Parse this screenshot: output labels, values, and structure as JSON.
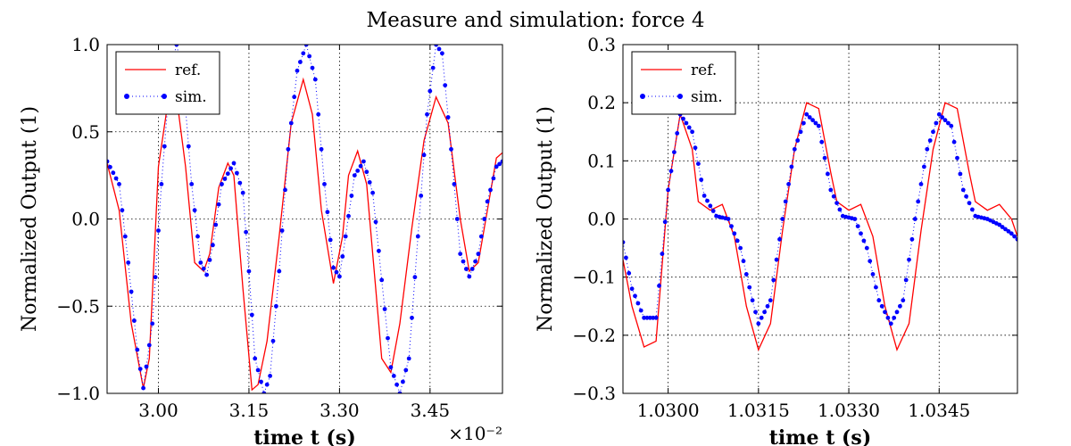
{
  "figure": {
    "title": "Measure and simulation: force 4"
  },
  "chart_data": [
    {
      "type": "line",
      "title": "",
      "xlabel": "time t (s)",
      "ylabel": "Normalized Output (1)",
      "x_offset_text": "×10⁻²",
      "xlim": [
        2.915,
        3.57
      ],
      "ylim": [
        -1.0,
        1.0
      ],
      "xticks": [
        3.0,
        3.15,
        3.3,
        3.45
      ],
      "xtick_labels": [
        "3.00",
        "3.15",
        "3.30",
        "3.45"
      ],
      "yticks": [
        -1.0,
        -0.5,
        0.0,
        0.5,
        1.0
      ],
      "ytick_labels": [
        "−1.0",
        "−0.5",
        "0.0",
        "0.5",
        "1.0"
      ],
      "grid": true,
      "legend": "top-left",
      "series": [
        {
          "name": "ref.",
          "style": "line",
          "color": "#ff0000",
          "x": [
            2.915,
            2.935,
            2.955,
            2.975,
            2.985,
            3.0,
            3.015,
            3.03,
            3.045,
            3.06,
            3.075,
            3.085,
            3.1,
            3.115,
            3.125,
            3.14,
            3.155,
            3.165,
            3.18,
            3.2,
            3.22,
            3.24,
            3.255,
            3.27,
            3.29,
            3.305,
            3.315,
            3.33,
            3.345,
            3.36,
            3.37,
            3.385,
            3.4,
            3.42,
            3.44,
            3.46,
            3.48,
            3.5,
            3.515,
            3.53,
            3.545,
            3.56,
            3.57
          ],
          "y": [
            0.32,
            0.05,
            -0.6,
            -0.97,
            -0.8,
            0.3,
            0.65,
            0.7,
            0.3,
            -0.25,
            -0.3,
            -0.2,
            0.18,
            0.32,
            0.25,
            -0.4,
            -0.98,
            -0.95,
            -0.7,
            -0.1,
            0.55,
            0.8,
            0.6,
            0.05,
            -0.37,
            -0.1,
            0.25,
            0.39,
            0.2,
            -0.4,
            -0.8,
            -0.88,
            -0.6,
            -0.05,
            0.45,
            0.7,
            0.55,
            0.0,
            -0.3,
            -0.25,
            0.05,
            0.35,
            0.38
          ]
        },
        {
          "name": "sim.",
          "style": "dotted-markers",
          "color": "#0000ff",
          "x": [
            2.915,
            2.935,
            2.95,
            2.965,
            2.975,
            2.99,
            3.005,
            3.02,
            3.03,
            3.04,
            3.055,
            3.07,
            3.08,
            3.09,
            3.105,
            3.125,
            3.14,
            3.15,
            3.16,
            3.175,
            3.185,
            3.2,
            3.215,
            3.23,
            3.245,
            3.26,
            3.275,
            3.29,
            3.3,
            3.31,
            3.325,
            3.34,
            3.355,
            3.37,
            3.385,
            3.4,
            3.415,
            3.43,
            3.445,
            3.46,
            3.47,
            3.485,
            3.5,
            3.515,
            3.53,
            3.545,
            3.56,
            3.57
          ],
          "y": [
            0.33,
            0.2,
            -0.25,
            -0.75,
            -0.97,
            -0.6,
            0.2,
            0.85,
            1.0,
            0.85,
            0.2,
            -0.25,
            -0.32,
            -0.15,
            0.2,
            0.32,
            0.15,
            -0.3,
            -0.8,
            -1.0,
            -0.9,
            -0.3,
            0.4,
            0.85,
            1.0,
            0.8,
            0.2,
            -0.28,
            -0.33,
            -0.1,
            0.25,
            0.33,
            0.15,
            -0.35,
            -0.85,
            -1.0,
            -0.8,
            -0.1,
            0.6,
            1.0,
            0.95,
            0.4,
            -0.2,
            -0.33,
            -0.2,
            0.1,
            0.3,
            0.33
          ]
        }
      ]
    },
    {
      "type": "line",
      "title": "",
      "xlabel": "time t (s)",
      "ylabel": "Normalized Output (1)",
      "xlim": [
        1.02925,
        1.0358
      ],
      "ylim": [
        -0.3,
        0.3
      ],
      "xticks": [
        1.03,
        1.0315,
        1.033,
        1.0345
      ],
      "xtick_labels": [
        "1.0300",
        "1.0315",
        "1.0330",
        "1.0345"
      ],
      "yticks": [
        -0.3,
        -0.2,
        -0.1,
        0.0,
        0.1,
        0.2,
        0.3
      ],
      "ytick_labels": [
        "−0.3",
        "−0.2",
        "−0.1",
        "0.0",
        "0.1",
        "0.2",
        "0.3"
      ],
      "grid": true,
      "legend": "top-left",
      "series": [
        {
          "name": "ref.",
          "style": "line",
          "color": "#ff0000",
          "x": [
            1.02925,
            1.0294,
            1.0296,
            1.0298,
            1.03,
            1.0302,
            1.0304,
            1.0305,
            1.0307,
            1.0309,
            1.0311,
            1.0313,
            1.0315,
            1.0317,
            1.0319,
            1.0321,
            1.0323,
            1.0325,
            1.0327,
            1.0328,
            1.033,
            1.0332,
            1.0334,
            1.0336,
            1.0338,
            1.034,
            1.0342,
            1.0344,
            1.0346,
            1.0348,
            1.035,
            1.0351,
            1.0353,
            1.0355,
            1.0357,
            1.0358
          ],
          "y": [
            -0.07,
            -0.15,
            -0.22,
            -0.21,
            0.05,
            0.18,
            0.12,
            0.03,
            0.015,
            0.025,
            -0.03,
            -0.15,
            -0.225,
            -0.18,
            -0.02,
            0.12,
            0.2,
            0.19,
            0.08,
            0.03,
            0.015,
            0.025,
            -0.03,
            -0.15,
            -0.225,
            -0.18,
            -0.02,
            0.12,
            0.2,
            0.19,
            0.08,
            0.03,
            0.015,
            0.025,
            0.0,
            -0.03
          ]
        },
        {
          "name": "sim.",
          "style": "dotted-markers",
          "color": "#0000ff",
          "x": [
            1.02925,
            1.0294,
            1.0296,
            1.0298,
            1.03,
            1.0302,
            1.0304,
            1.0306,
            1.0308,
            1.031,
            1.0312,
            1.0314,
            1.0315,
            1.0317,
            1.0319,
            1.0321,
            1.0323,
            1.0325,
            1.0327,
            1.0329,
            1.0331,
            1.0333,
            1.0335,
            1.0337,
            1.0339,
            1.0341,
            1.0343,
            1.0345,
            1.0347,
            1.0349,
            1.0351,
            1.0353,
            1.0355,
            1.0357,
            1.0358
          ],
          "y": [
            -0.04,
            -0.12,
            -0.17,
            -0.17,
            0.05,
            0.18,
            0.15,
            0.04,
            0.005,
            0.0,
            -0.05,
            -0.14,
            -0.18,
            -0.14,
            0.0,
            0.12,
            0.18,
            0.16,
            0.05,
            0.005,
            0.0,
            -0.05,
            -0.14,
            -0.18,
            -0.14,
            0.0,
            0.12,
            0.18,
            0.16,
            0.05,
            0.005,
            0.0,
            -0.01,
            -0.025,
            -0.035
          ]
        }
      ]
    }
  ]
}
